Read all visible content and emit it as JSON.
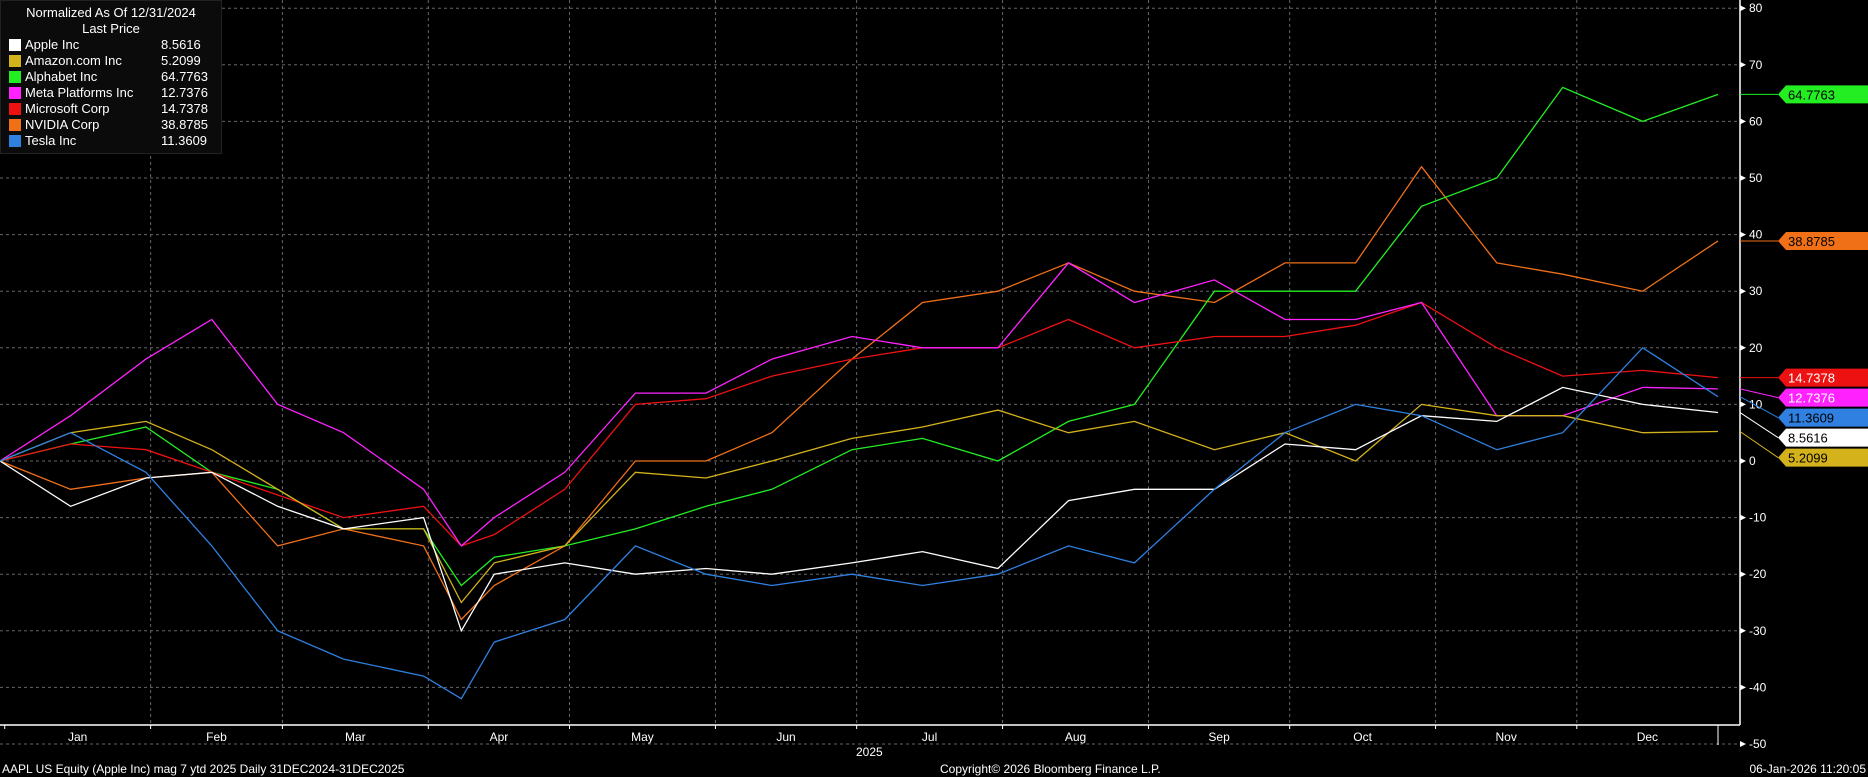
{
  "chart_data": {
    "type": "line",
    "legend": {
      "title": "Normalized As Of 12/31/2024",
      "subtitle": "Last Price",
      "placement": "top-left"
    },
    "x": [
      "2024-12-31",
      "2025-01-15",
      "2025-01-31",
      "2025-02-14",
      "2025-02-28",
      "2025-03-14",
      "2025-03-31",
      "2025-04-08",
      "2025-04-15",
      "2025-04-30",
      "2025-05-15",
      "2025-05-30",
      "2025-06-13",
      "2025-06-30",
      "2025-07-15",
      "2025-07-31",
      "2025-08-15",
      "2025-08-29",
      "2025-09-15",
      "2025-09-30",
      "2025-10-15",
      "2025-10-29",
      "2025-11-14",
      "2025-11-28",
      "2025-12-15",
      "2025-12-31"
    ],
    "series": [
      {
        "name": "Apple Inc",
        "last": "8.5616",
        "color": "#ffffff",
        "text": "#000000",
        "values": [
          0,
          -8,
          -3,
          -2,
          -8,
          -12,
          -10,
          -30,
          -20,
          -18,
          -20,
          -19,
          -20,
          -18,
          -16,
          -19,
          -7,
          -5,
          -5,
          3,
          2,
          8,
          7,
          13,
          10,
          8.5616
        ]
      },
      {
        "name": "Amazon.com Inc",
        "last": "5.2099",
        "color": "#d4b21c",
        "text": "#000000",
        "values": [
          0,
          5,
          7,
          2,
          -5,
          -12,
          -12,
          -25,
          -18,
          -15,
          -2,
          -3,
          0,
          4,
          6,
          9,
          5,
          7,
          2,
          5,
          0,
          10,
          8,
          8,
          5,
          5.2099
        ]
      },
      {
        "name": "Alphabet Inc",
        "last": "64.7763",
        "color": "#22ee22",
        "text": "#000000",
        "values": [
          0,
          3,
          6,
          -2,
          -5,
          -12,
          -12,
          -22,
          -17,
          -15,
          -12,
          -8,
          -5,
          2,
          4,
          0,
          7,
          10,
          30,
          30,
          30,
          45,
          50,
          66,
          60,
          64.7763
        ]
      },
      {
        "name": "Meta Platforms Inc",
        "last": "12.7376",
        "color": "#ff22ff",
        "text": "#ffffff",
        "values": [
          0,
          8,
          18,
          25,
          10,
          5,
          -5,
          -15,
          -10,
          -2,
          12,
          12,
          18,
          22,
          20,
          20,
          35,
          28,
          32,
          25,
          25,
          28,
          8,
          8,
          13,
          12.7376
        ]
      },
      {
        "name": "Microsoft Corp",
        "last": "14.7378",
        "color": "#ee1111",
        "text": "#ffffff",
        "values": [
          0,
          3,
          2,
          -2,
          -6,
          -10,
          -8,
          -15,
          -13,
          -5,
          10,
          11,
          15,
          18,
          20,
          20,
          25,
          20,
          22,
          22,
          24,
          28,
          20,
          15,
          16,
          14.7378
        ]
      },
      {
        "name": "NVIDIA Corp",
        "last": "38.8785",
        "color": "#f07018",
        "text": "#000000",
        "values": [
          0,
          -5,
          -3,
          -2,
          -15,
          -12,
          -15,
          -28,
          -22,
          -15,
          0,
          0,
          5,
          18,
          28,
          30,
          35,
          30,
          28,
          35,
          35,
          52,
          35,
          33,
          30,
          38.8785
        ]
      },
      {
        "name": "Tesla Inc",
        "last": "11.3609",
        "color": "#2f80e0",
        "text": "#000000",
        "values": [
          0,
          5,
          -2,
          -15,
          -30,
          -35,
          -38,
          -42,
          -32,
          -28,
          -15,
          -20,
          -22,
          -20,
          -22,
          -20,
          -15,
          -18,
          -5,
          5,
          10,
          8,
          2,
          5,
          20,
          11.3609
        ]
      }
    ],
    "ylim": [
      -55,
      80
    ],
    "yticks": [
      80,
      70,
      60,
      50,
      40,
      30,
      20,
      10,
      0,
      -10,
      -20,
      -30,
      -40,
      -50
    ],
    "xticks": [
      "Jan",
      "Feb",
      "Mar",
      "Apr",
      "May",
      "Jun",
      "Jul",
      "Aug",
      "Sep",
      "Oct",
      "Nov",
      "Dec"
    ],
    "xlabel": "2025",
    "y_axis_side": "right",
    "grid": true
  },
  "footer": {
    "left": "AAPL US Equity (Apple Inc) mag 7 ytd 2025 Daily 31DEC2024-31DEC2025",
    "center": "Copyright© 2026 Bloomberg Finance L.P.",
    "right": "06-Jan-2026 11:20:05"
  }
}
